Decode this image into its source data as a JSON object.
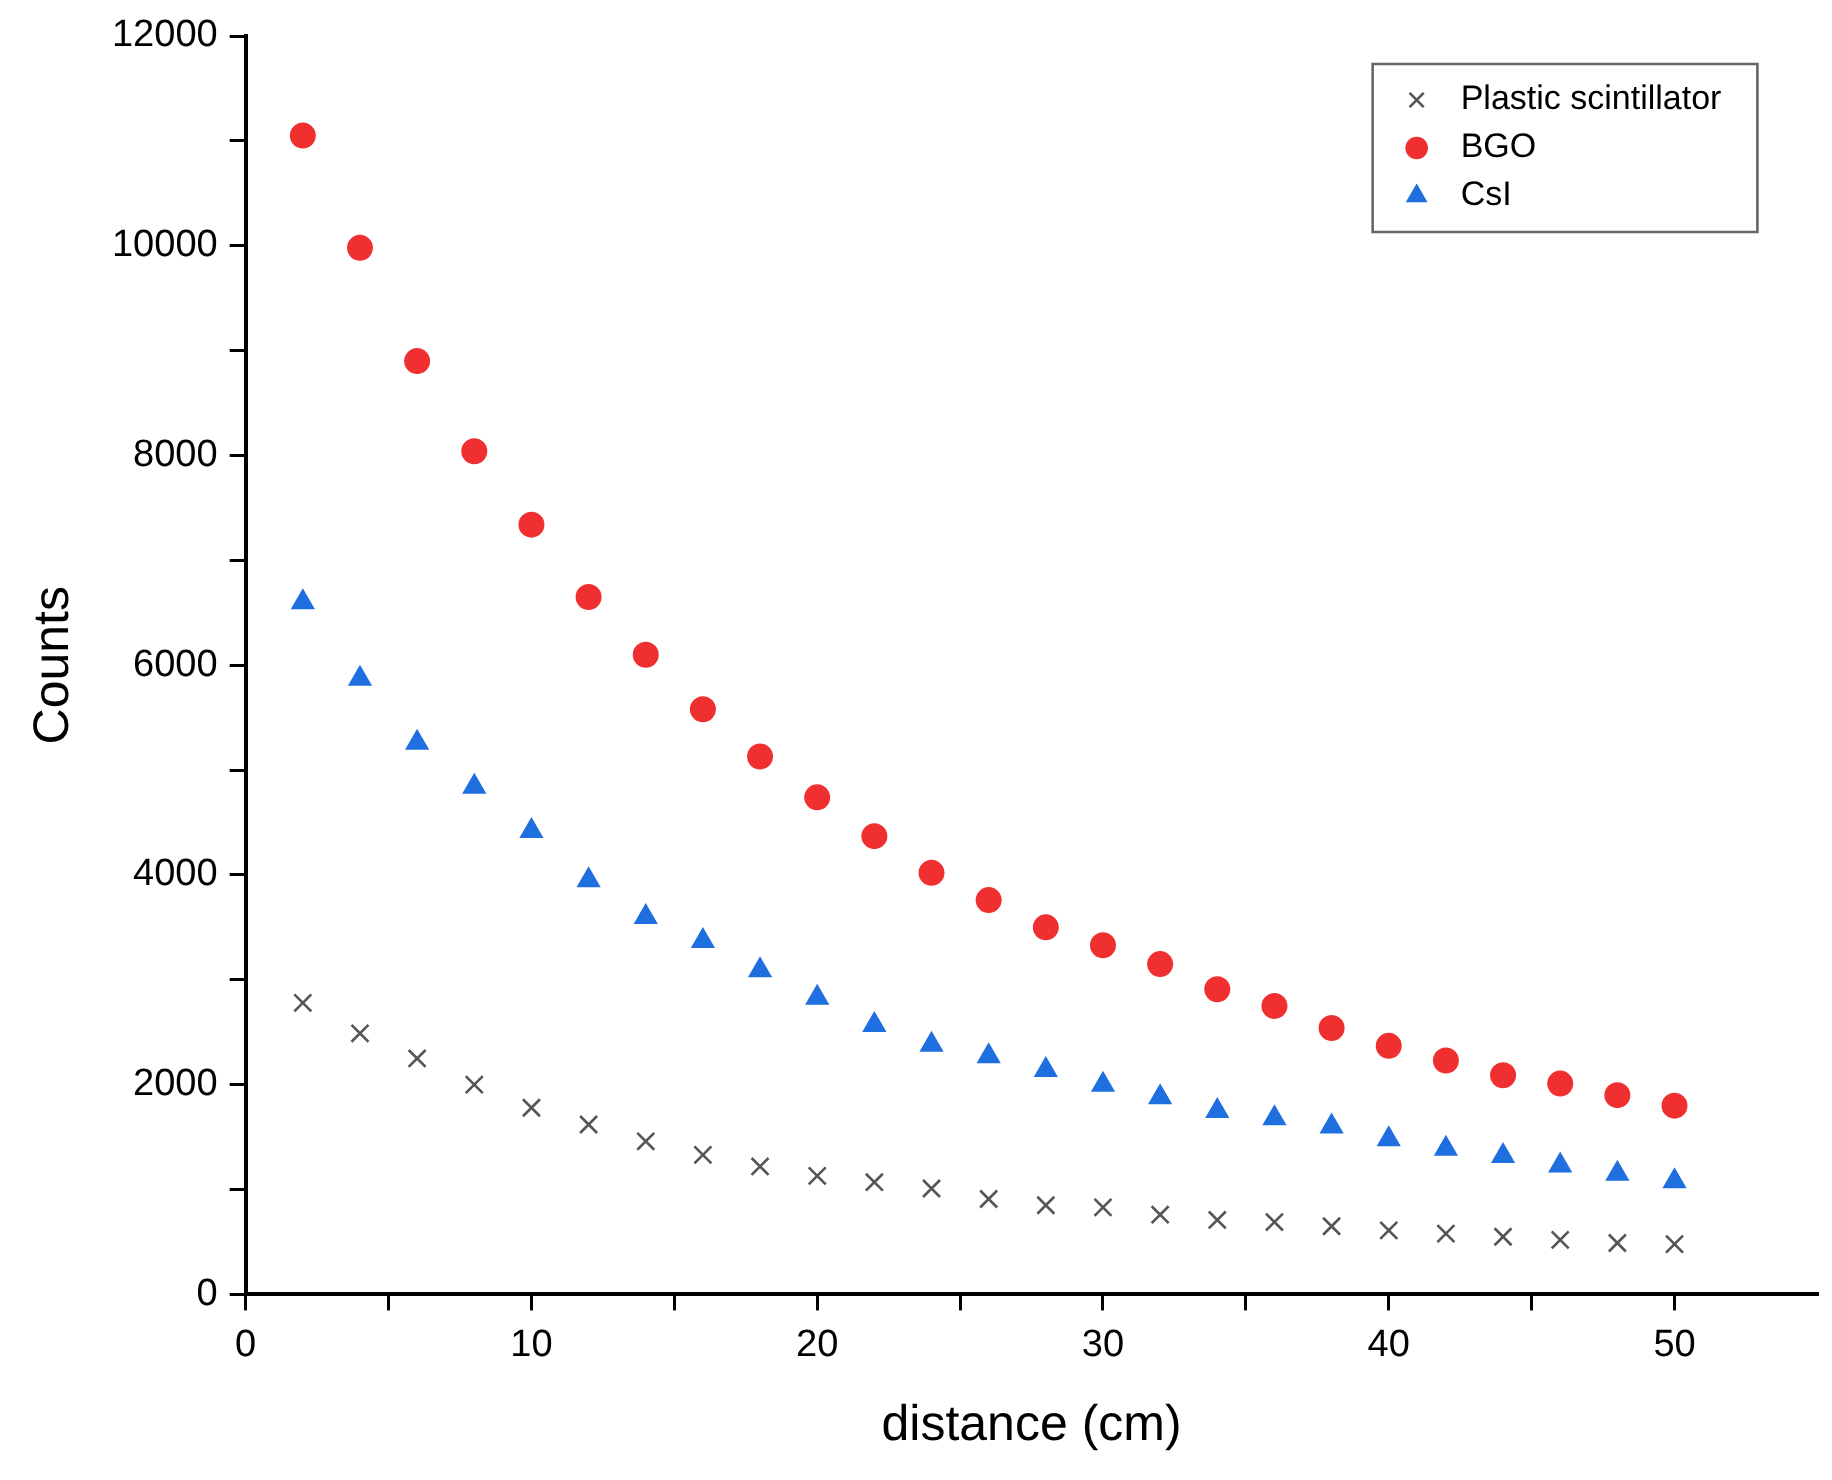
{
  "chart_data": {
    "type": "scatter",
    "xlabel": "distance (cm)",
    "ylabel": "Counts",
    "x": [
      2,
      4,
      6,
      8,
      10,
      12,
      14,
      16,
      18,
      20,
      22,
      24,
      26,
      28,
      30,
      32,
      34,
      36,
      38,
      40,
      42,
      44,
      46,
      48,
      50
    ],
    "xlim": [
      0,
      55
    ],
    "xticks": [
      0,
      {
        "value": 5,
        "label": null
      },
      10,
      {
        "value": 15,
        "label": null
      },
      20,
      {
        "value": 25,
        "label": null
      },
      30,
      {
        "value": 35,
        "label": null
      },
      40,
      {
        "value": 45,
        "label": null
      },
      50
    ],
    "ylim": [
      0,
      12000
    ],
    "yticks": [
      0,
      {
        "value": 1000,
        "label": null
      },
      2000,
      {
        "value": 3000,
        "label": null
      },
      4000,
      {
        "value": 5000,
        "label": null
      },
      6000,
      {
        "value": 7000,
        "label": null
      },
      8000,
      {
        "value": 9000,
        "label": null
      },
      10000,
      {
        "value": 11000,
        "label": null
      },
      12000
    ],
    "grid": false,
    "legend": "top right",
    "series": [
      {
        "name": "Plastic scintillator",
        "color": "#555555",
        "marker": "cross",
        "values": [
          2780,
          2490,
          2250,
          2000,
          1780,
          1620,
          1460,
          1330,
          1220,
          1130,
          1070,
          1010,
          910,
          850,
          830,
          760,
          710,
          690,
          650,
          610,
          580,
          550,
          520,
          490,
          480
        ]
      },
      {
        "name": "BGO",
        "color": "#f03030",
        "marker": "circle",
        "values": [
          11050,
          9980,
          8900,
          8040,
          7340,
          6650,
          6100,
          5580,
          5130,
          4740,
          4370,
          4020,
          3760,
          3500,
          3330,
          3150,
          2910,
          2750,
          2540,
          2370,
          2230,
          2090,
          2010,
          1900,
          1800
        ]
      },
      {
        "name": "CsI",
        "color": "#1f6fe0",
        "marker": "triangle",
        "values": [
          6600,
          5870,
          5260,
          4840,
          4420,
          3950,
          3600,
          3370,
          3090,
          2830,
          2570,
          2380,
          2270,
          2140,
          2000,
          1880,
          1750,
          1680,
          1600,
          1480,
          1390,
          1320,
          1230,
          1150,
          1080
        ]
      }
    ]
  }
}
